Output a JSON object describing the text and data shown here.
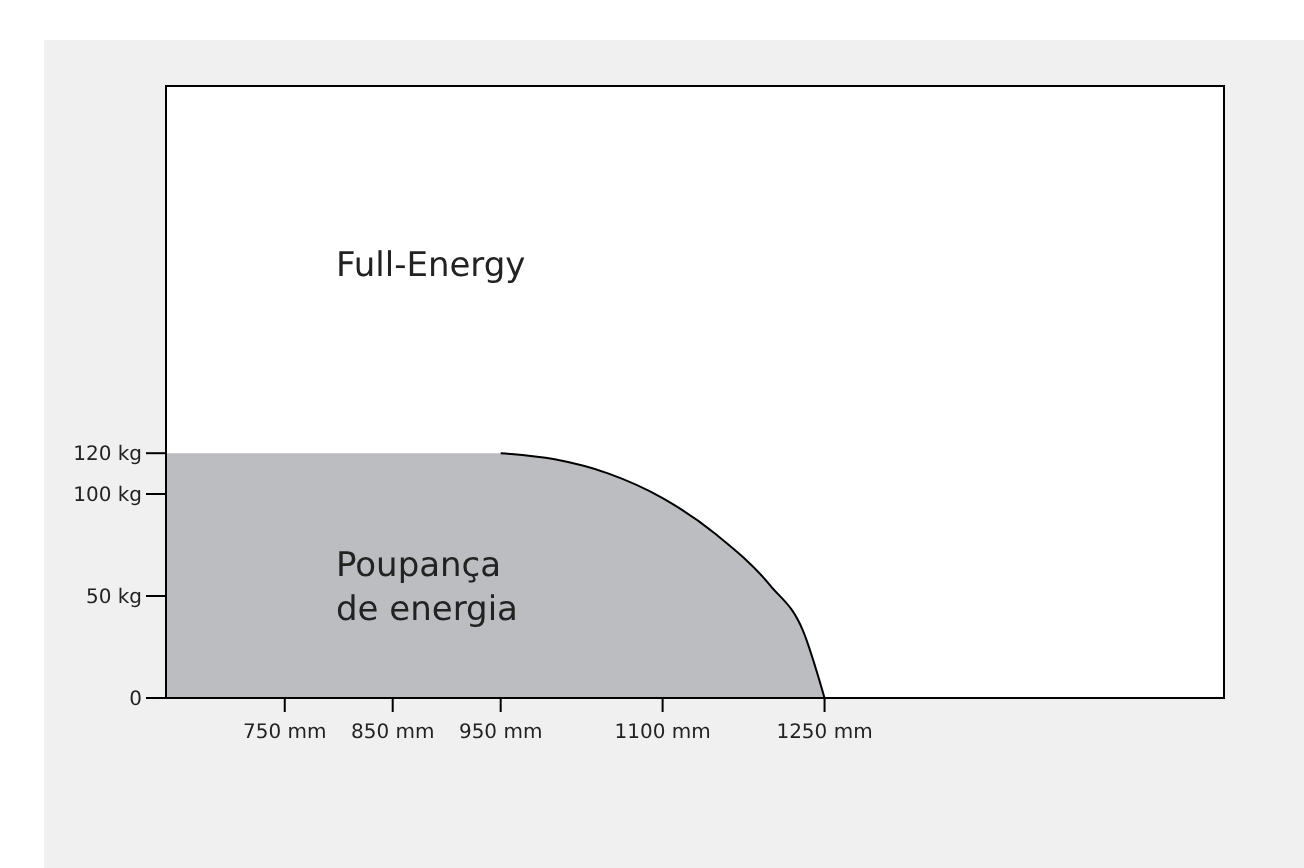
{
  "chart_data": {
    "type": "area",
    "x": [
      640,
      950,
      1000,
      1050,
      1100,
      1150,
      1200,
      1230,
      1250
    ],
    "series": [
      {
        "color": "#bcbdc0",
        "values": [
          120,
          120,
          117,
          110,
          98,
          80,
          55,
          33,
          0
        ]
      }
    ],
    "xlim": [
      640,
      1620
    ],
    "ylim": [
      0,
      300
    ],
    "xticks": [
      {
        "value": 750,
        "label": "750 mm"
      },
      {
        "value": 850,
        "label": "850 mm"
      },
      {
        "value": 950,
        "label": "950 mm"
      },
      {
        "value": 1100,
        "label": "1100 mm"
      },
      {
        "value": 1250,
        "label": "1250 mm"
      }
    ],
    "yticks": [
      0,
      {
        "value": 50,
        "label": "50 kg"
      },
      {
        "value": 100,
        "label": "100 kg"
      },
      {
        "value": 120,
        "label": "120 kg"
      }
    ],
    "annotations": [
      "Full-Energy",
      "Poupança\nde energia"
    ],
    "grid": false
  }
}
